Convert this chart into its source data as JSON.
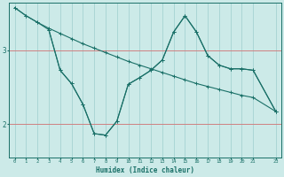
{
  "xlabel": "Humidex (Indice chaleur)",
  "bg_color": "#cceae8",
  "line_color": "#1a7068",
  "grid_color_h": "#d08080",
  "grid_color_v": "#9ecece",
  "xlim": [
    -0.5,
    23.5
  ],
  "ylim": [
    1.55,
    3.65
  ],
  "yticks": [
    2,
    3
  ],
  "ytick_labels": [
    "2",
    "3"
  ],
  "xticks": [
    0,
    1,
    2,
    3,
    4,
    5,
    6,
    7,
    8,
    9,
    10,
    11,
    12,
    13,
    14,
    15,
    16,
    17,
    18,
    19,
    20,
    21,
    23
  ],
  "line1_x": [
    0,
    1,
    2,
    3,
    4,
    5,
    6,
    7,
    8,
    9,
    10,
    11,
    12,
    13,
    14,
    15,
    16,
    17,
    18,
    19,
    20,
    21,
    23
  ],
  "line1_y": [
    3.58,
    3.47,
    3.38,
    3.3,
    3.23,
    3.16,
    3.09,
    3.03,
    2.97,
    2.91,
    2.85,
    2.8,
    2.75,
    2.7,
    2.65,
    2.6,
    2.55,
    2.51,
    2.47,
    2.43,
    2.39,
    2.36,
    2.17
  ],
  "line2_x": [
    0,
    1,
    2,
    3,
    4,
    5,
    6,
    7,
    8,
    9,
    10,
    11,
    12,
    13,
    14,
    15,
    16,
    17,
    18,
    19,
    20,
    21,
    23
  ],
  "line2_y": [
    3.58,
    3.47,
    3.38,
    3.28,
    2.73,
    2.55,
    2.27,
    1.87,
    1.85,
    2.04,
    2.54,
    2.63,
    2.73,
    2.87,
    3.25,
    3.47,
    3.25,
    2.93,
    2.8,
    2.75,
    2.75,
    2.73,
    2.17
  ],
  "line3_x": [
    3,
    4,
    5,
    6,
    7,
    8,
    9,
    10,
    11,
    12,
    13,
    14,
    15,
    16,
    17,
    18,
    19,
    20,
    21,
    23
  ],
  "line3_y": [
    3.28,
    2.73,
    2.55,
    2.27,
    1.87,
    1.85,
    2.04,
    2.54,
    2.63,
    2.73,
    2.87,
    3.25,
    3.47,
    3.25,
    2.93,
    2.8,
    2.75,
    2.75,
    2.73,
    2.17
  ]
}
